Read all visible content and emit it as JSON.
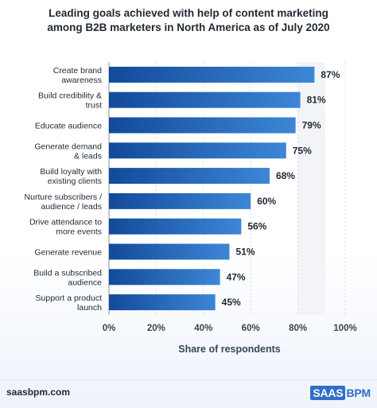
{
  "title_lines": [
    "Leading goals achieved with help of content marketing",
    "among B2B marketers in North America as of July 2020"
  ],
  "footer": {
    "url": "saasbpm.com",
    "logo_part1": "SAAS",
    "logo_part2": "BPM"
  },
  "colors": {
    "bar_start": "#134a9a",
    "bar_end": "#3d86d6",
    "highlight": "#f2f4f8"
  },
  "chart_data": {
    "type": "bar",
    "orientation": "horizontal",
    "categories": [
      [
        "Create brand",
        "awareness"
      ],
      [
        "Build credibility &",
        "trust"
      ],
      [
        "Educate audience"
      ],
      [
        "Generate demand",
        "& leads"
      ],
      [
        "Build loyalty with",
        "existing clients"
      ],
      [
        "Nurture subscribers /",
        "audience / leads"
      ],
      [
        "Drive attendance to",
        "more events"
      ],
      [
        "Generate revenue"
      ],
      [
        "Build a subscribed",
        "audience"
      ],
      [
        "Support a product",
        "launch"
      ]
    ],
    "values": [
      87,
      81,
      79,
      75,
      68,
      60,
      56,
      51,
      47,
      45
    ],
    "value_labels": [
      "87%",
      "81%",
      "79%",
      "75%",
      "68%",
      "60%",
      "56%",
      "51%",
      "47%",
      "45%"
    ],
    "xlim": [
      0,
      100
    ],
    "xticks": [
      0,
      20,
      40,
      60,
      80,
      100
    ],
    "xtick_labels": [
      "0%",
      "20%",
      "40%",
      "60%",
      "80%",
      "100%"
    ],
    "xlabel": "Share of respondents",
    "grid": "vertical"
  }
}
